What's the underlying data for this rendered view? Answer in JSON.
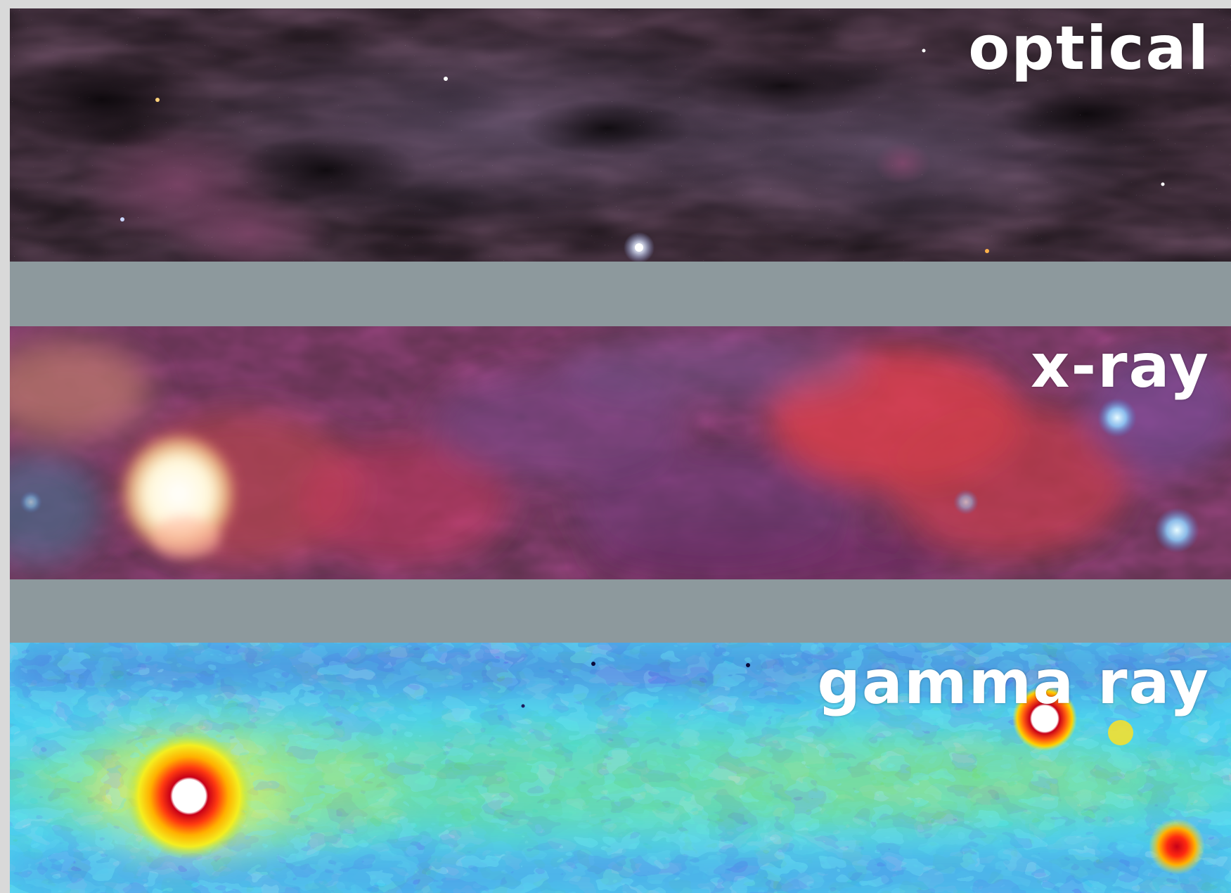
{
  "panels": {
    "optical": {
      "label": "optical"
    },
    "xray": {
      "label": "x-ray"
    },
    "gamma": {
      "label": "gamma ray"
    }
  },
  "colors": {
    "page_background": "#d9d9d9",
    "separator_gray": "#8d999d",
    "label_text": "#ffffff",
    "optical_background": "#120d10",
    "xray_background": "#5b3046",
    "gamma_background": "#2ec6ea",
    "gamma_source_core": "#ffffff",
    "gamma_source_ring": "#c80018"
  }
}
